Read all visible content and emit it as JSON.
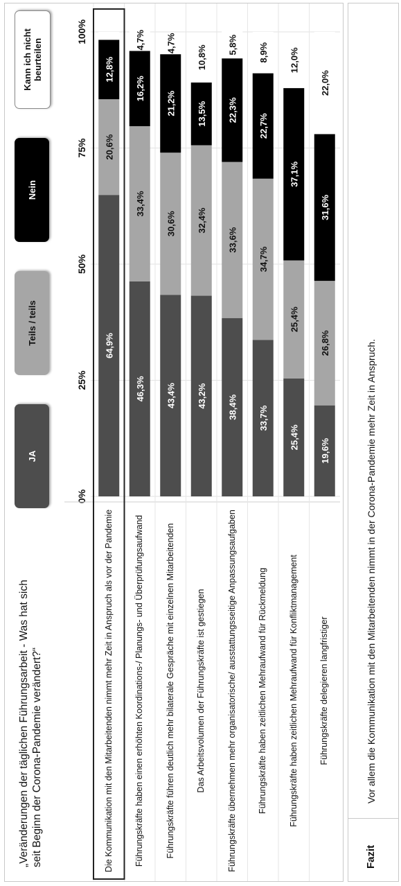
{
  "question": "„Veränderungen der täglichen Führungsarbeit - Was hat sich seit Beginn der Corona-Pandemie verändert?“",
  "legend": [
    {
      "label": "JA",
      "color": "#4d4d4d",
      "text_color": "#ffffff"
    },
    {
      "label": "Teils / teils",
      "color": "#a6a6a6",
      "text_color": "#111111"
    },
    {
      "label": "Nein",
      "color": "#000000",
      "text_color": "#ffffff"
    },
    {
      "label": "Kann ich nicht beurteilen",
      "color": "#ffffff",
      "text_color": "#111111"
    }
  ],
  "fazit": {
    "label": "Fazit",
    "text": "Vor allem die Kommunikation mit den Mitarbeitenden nimmt in der Corona-Pandemie mehr Zeit in Anspruch."
  },
  "chart_data": {
    "type": "bar",
    "stacked": true,
    "orientation": "horizontal",
    "xlim": [
      0,
      100
    ],
    "ticks": [
      "0%",
      "25%",
      "50%",
      "75%",
      "100%"
    ],
    "categories": [
      "Die Kommunikation mit den Mitarbeitenden nimmt mehr Zeit in Anspruch als vor der Pandemie",
      "Führungskräfte haben einen erhöhten Koordinations-/ Planungs- und Überprüfungsaufwand",
      "Führungskräfte führen deutlich mehr bilaterale Gespräche mit einzelnen Mitarbeitenden",
      "Das Arbeitsvolumen der Führungskräfte ist gestiegen",
      "Führungskräfte übernehmen mehr organisatorische/ ausstattungsseitige Anpassungsaufgaben",
      "Führungskräfte haben zeitlichen Mehraufwand für Rückmeldung",
      "Führungskräfte haben zeitlichen Mehraufwand für Konfliktmanagement",
      "Führungskräfte delegieren langfristiger"
    ],
    "series": [
      {
        "name": "JA",
        "values": [
          64.9,
          46.3,
          43.4,
          43.2,
          38.4,
          33.7,
          25.4,
          19.6
        ],
        "labels": [
          "64,9%",
          "46,3%",
          "43,4%",
          "43,2%",
          "38,4%",
          "33,7%",
          "25,4%",
          "19,6%"
        ]
      },
      {
        "name": "Teils / teils",
        "values": [
          20.6,
          33.4,
          30.6,
          32.4,
          33.6,
          34.7,
          25.4,
          26.8
        ],
        "labels": [
          "20,6%",
          "33,4%",
          "30,6%",
          "32,4%",
          "33,6%",
          "34,7%",
          "25,4%",
          "26,8%"
        ]
      },
      {
        "name": "Nein",
        "values": [
          12.8,
          16.2,
          21.2,
          13.5,
          22.3,
          22.7,
          37.1,
          31.6
        ],
        "labels": [
          "12,8%",
          "16,2%",
          "21,2%",
          "13,5%",
          "22,3%",
          "22,7%",
          "37,1%",
          "31,6%"
        ]
      },
      {
        "name": "Kann ich nicht beurteilen",
        "values": [
          1.7,
          4.7,
          4.7,
          10.8,
          5.8,
          8.9,
          12.0,
          22.0
        ],
        "labels": [
          "",
          "4,7%",
          "4,7%",
          "10,8%",
          "5,8%",
          "8,9%",
          "12,0%",
          "22,0%"
        ]
      }
    ],
    "highlighted_category_index": 0
  }
}
